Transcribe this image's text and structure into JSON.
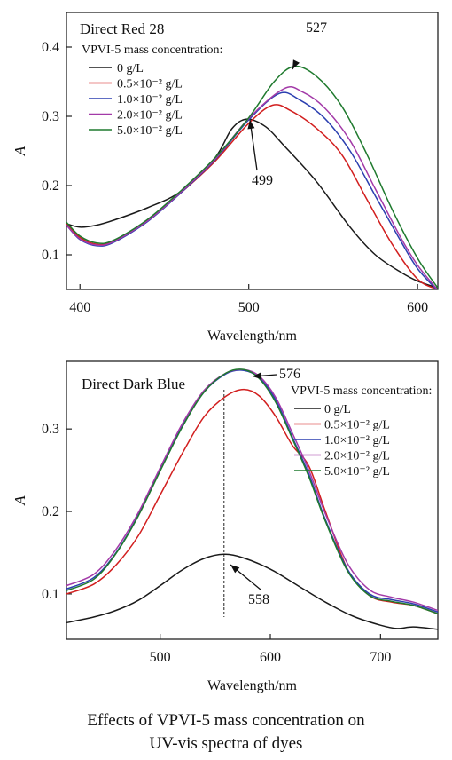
{
  "figure": {
    "caption_line1": "Effects of VPVI-5 mass concentration on",
    "caption_line2": "UV-vis spectra of dyes"
  },
  "chart_data": [
    {
      "type": "line",
      "panel_title": "Direct Red 28",
      "legend_title": "VPVI-5 mass concentration:",
      "xlabel": "Wavelength/nm",
      "ylabel": "A",
      "xlim": [
        392,
        612
      ],
      "ylim": [
        0.05,
        0.45
      ],
      "xticks": [
        400,
        500,
        600
      ],
      "yticks": [
        0.1,
        0.2,
        0.3,
        0.4
      ],
      "legend_position": "top-left",
      "grid": false,
      "annotations": [
        {
          "text": "527",
          "x": 527,
          "y": 0.372
        },
        {
          "text": "499",
          "x": 499,
          "y": 0.296
        }
      ],
      "series": [
        {
          "name": "0 g/L",
          "color": "#1a1a1a",
          "points": [
            [
              392,
              0.145
            ],
            [
              400,
              0.14
            ],
            [
              410,
              0.143
            ],
            [
              420,
              0.15
            ],
            [
              440,
              0.168
            ],
            [
              460,
              0.192
            ],
            [
              480,
              0.24
            ],
            [
              490,
              0.282
            ],
            [
              499,
              0.296
            ],
            [
              510,
              0.285
            ],
            [
              520,
              0.26
            ],
            [
              540,
              0.206
            ],
            [
              560,
              0.14
            ],
            [
              575,
              0.1
            ],
            [
              590,
              0.075
            ],
            [
              600,
              0.062
            ],
            [
              612,
              0.052
            ]
          ]
        },
        {
          "name": "0.5×10⁻² g/L",
          "color": "#d21f1f",
          "points": [
            [
              392,
              0.145
            ],
            [
              400,
              0.125
            ],
            [
              410,
              0.115
            ],
            [
              420,
              0.12
            ],
            [
              440,
              0.15
            ],
            [
              460,
              0.19
            ],
            [
              480,
              0.235
            ],
            [
              500,
              0.29
            ],
            [
              514,
              0.316
            ],
            [
              525,
              0.308
            ],
            [
              540,
              0.283
            ],
            [
              555,
              0.245
            ],
            [
              570,
              0.18
            ],
            [
              585,
              0.115
            ],
            [
              600,
              0.065
            ],
            [
              612,
              0.05
            ]
          ]
        },
        {
          "name": "1.0×10⁻² g/L",
          "color": "#2b3fb0",
          "points": [
            [
              392,
              0.143
            ],
            [
              400,
              0.122
            ],
            [
              410,
              0.113
            ],
            [
              420,
              0.118
            ],
            [
              440,
              0.148
            ],
            [
              460,
              0.19
            ],
            [
              480,
              0.237
            ],
            [
              500,
              0.295
            ],
            [
              518,
              0.333
            ],
            [
              530,
              0.324
            ],
            [
              545,
              0.297
            ],
            [
              560,
              0.25
            ],
            [
              575,
              0.185
            ],
            [
              590,
              0.12
            ],
            [
              600,
              0.08
            ],
            [
              612,
              0.048
            ]
          ]
        },
        {
          "name": "2.0×10⁻² g/L",
          "color": "#a33aa8",
          "points": [
            [
              392,
              0.143
            ],
            [
              400,
              0.123
            ],
            [
              410,
              0.114
            ],
            [
              420,
              0.119
            ],
            [
              440,
              0.149
            ],
            [
              460,
              0.191
            ],
            [
              480,
              0.238
            ],
            [
              500,
              0.297
            ],
            [
              521,
              0.34
            ],
            [
              532,
              0.335
            ],
            [
              545,
              0.312
            ],
            [
              560,
              0.265
            ],
            [
              575,
              0.195
            ],
            [
              590,
              0.125
            ],
            [
              600,
              0.085
            ],
            [
              612,
              0.049
            ]
          ]
        },
        {
          "name": "5.0×10⁻² g/L",
          "color": "#1f7a2e",
          "points": [
            [
              392,
              0.147
            ],
            [
              400,
              0.127
            ],
            [
              410,
              0.117
            ],
            [
              420,
              0.121
            ],
            [
              440,
              0.151
            ],
            [
              460,
              0.193
            ],
            [
              480,
              0.24
            ],
            [
              500,
              0.298
            ],
            [
              515,
              0.35
            ],
            [
              527,
              0.372
            ],
            [
              540,
              0.358
            ],
            [
              555,
              0.315
            ],
            [
              570,
              0.245
            ],
            [
              585,
              0.165
            ],
            [
              600,
              0.095
            ],
            [
              612,
              0.052
            ]
          ]
        }
      ]
    },
    {
      "type": "line",
      "panel_title": "Direct Dark Blue",
      "legend_title": "VPVI-5 mass concentration:",
      "xlabel": "Wavelength/nm",
      "ylabel": "A",
      "xlim": [
        415,
        752
      ],
      "ylim": [
        0.045,
        0.382
      ],
      "xticks": [
        500,
        600,
        700
      ],
      "yticks": [
        0.1,
        0.2,
        0.3
      ],
      "legend_position": "top-right",
      "grid": false,
      "reference_line_x": 558,
      "annotations": [
        {
          "text": "576",
          "x": 576,
          "y": 0.372
        },
        {
          "text": "558",
          "x": 558,
          "y": 0.148
        }
      ],
      "series": [
        {
          "name": "0 g/L",
          "color": "#1a1a1a",
          "points": [
            [
              415,
              0.065
            ],
            [
              440,
              0.072
            ],
            [
              460,
              0.08
            ],
            [
              480,
              0.092
            ],
            [
              500,
              0.11
            ],
            [
              520,
              0.129
            ],
            [
              540,
              0.143
            ],
            [
              558,
              0.148
            ],
            [
              575,
              0.144
            ],
            [
              600,
              0.13
            ],
            [
              625,
              0.11
            ],
            [
              650,
              0.09
            ],
            [
              675,
              0.073
            ],
            [
              700,
              0.062
            ],
            [
              715,
              0.058
            ],
            [
              730,
              0.06
            ],
            [
              752,
              0.057
            ]
          ]
        },
        {
          "name": "0.5×10⁻² g/L",
          "color": "#d21f1f",
          "points": [
            [
              415,
              0.1
            ],
            [
              440,
              0.112
            ],
            [
              460,
              0.135
            ],
            [
              480,
              0.17
            ],
            [
              500,
              0.22
            ],
            [
              520,
              0.27
            ],
            [
              540,
              0.315
            ],
            [
              560,
              0.34
            ],
            [
              576,
              0.348
            ],
            [
              590,
              0.34
            ],
            [
              605,
              0.315
            ],
            [
              620,
              0.28
            ],
            [
              635,
              0.255
            ],
            [
              650,
              0.2
            ],
            [
              670,
              0.13
            ],
            [
              690,
              0.098
            ],
            [
              710,
              0.09
            ],
            [
              730,
              0.086
            ],
            [
              752,
              0.076
            ]
          ]
        },
        {
          "name": "1.0×10⁻² g/L",
          "color": "#2b3fb0",
          "points": [
            [
              415,
              0.106
            ],
            [
              440,
              0.12
            ],
            [
              460,
              0.15
            ],
            [
              480,
              0.195
            ],
            [
              500,
              0.25
            ],
            [
              520,
              0.303
            ],
            [
              540,
              0.345
            ],
            [
              560,
              0.367
            ],
            [
              576,
              0.371
            ],
            [
              590,
              0.362
            ],
            [
              605,
              0.335
            ],
            [
              620,
              0.29
            ],
            [
              635,
              0.245
            ],
            [
              650,
              0.19
            ],
            [
              670,
              0.13
            ],
            [
              690,
              0.1
            ],
            [
              710,
              0.093
            ],
            [
              730,
              0.088
            ],
            [
              752,
              0.078
            ]
          ]
        },
        {
          "name": "2.0×10⁻² g/L",
          "color": "#a33aa8",
          "points": [
            [
              415,
              0.11
            ],
            [
              440,
              0.124
            ],
            [
              460,
              0.154
            ],
            [
              480,
              0.198
            ],
            [
              500,
              0.253
            ],
            [
              520,
              0.306
            ],
            [
              540,
              0.347
            ],
            [
              560,
              0.368
            ],
            [
              576,
              0.372
            ],
            [
              590,
              0.364
            ],
            [
              605,
              0.338
            ],
            [
              620,
              0.295
            ],
            [
              635,
              0.25
            ],
            [
              650,
              0.197
            ],
            [
              670,
              0.137
            ],
            [
              690,
              0.105
            ],
            [
              710,
              0.096
            ],
            [
              730,
              0.09
            ],
            [
              752,
              0.08
            ]
          ]
        },
        {
          "name": "5.0×10⁻² g/L",
          "color": "#1f7a2e",
          "points": [
            [
              415,
              0.104
            ],
            [
              440,
              0.118
            ],
            [
              460,
              0.149
            ],
            [
              480,
              0.194
            ],
            [
              500,
              0.249
            ],
            [
              520,
              0.302
            ],
            [
              540,
              0.345
            ],
            [
              560,
              0.368
            ],
            [
              576,
              0.372
            ],
            [
              590,
              0.361
            ],
            [
              605,
              0.332
            ],
            [
              620,
              0.288
            ],
            [
              635,
              0.242
            ],
            [
              650,
              0.188
            ],
            [
              670,
              0.128
            ],
            [
              690,
              0.098
            ],
            [
              710,
              0.091
            ],
            [
              730,
              0.086
            ],
            [
              752,
              0.076
            ]
          ]
        }
      ]
    }
  ]
}
